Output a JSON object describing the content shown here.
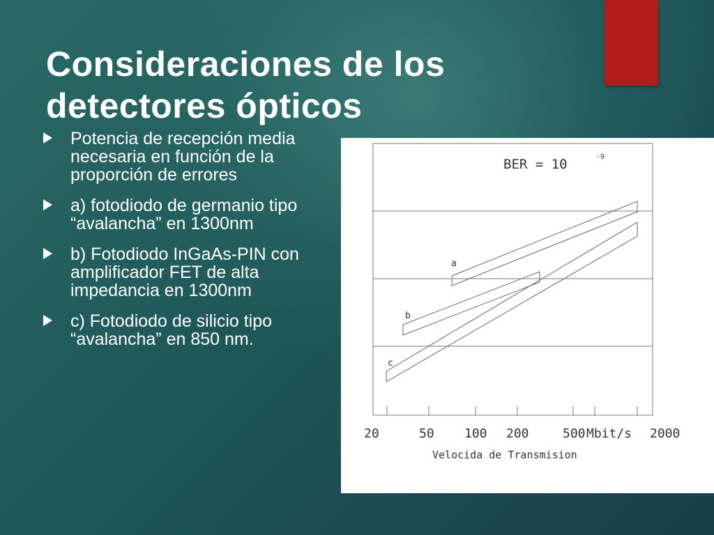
{
  "slide": {
    "title": "Consideraciones de los detectores ópticos",
    "bullets": [
      "Potencia de recepción media necesaria en función de la proporción de errores",
      "a) fotodiodo de germanio tipo “avalancha” en 1300nm",
      "b) Fotodiodo InGaAs-PIN con amplificador FET de alta impedancia en 1300nm",
      "c) Fotodiodo de silicio tipo “avalancha” en 850 nm."
    ],
    "colors": {
      "accent": "#b31a1a",
      "background": "#1f5759",
      "text": "#ffffff"
    }
  },
  "chart_data": {
    "type": "area",
    "annotation": {
      "base": "BER = 10",
      "exponent": "-9"
    },
    "x_tick_labels": [
      "20",
      "50",
      "100",
      "200",
      "500",
      "2000"
    ],
    "x_unit": "Mbit/s",
    "xlabel": "Velocida de Transmision",
    "series": [
      {
        "name": "a",
        "x": [
          75,
          1500
        ]
      },
      {
        "name": "b",
        "x": [
          25,
          270
        ]
      },
      {
        "name": "c",
        "x": [
          22,
          1500
        ]
      }
    ]
  }
}
